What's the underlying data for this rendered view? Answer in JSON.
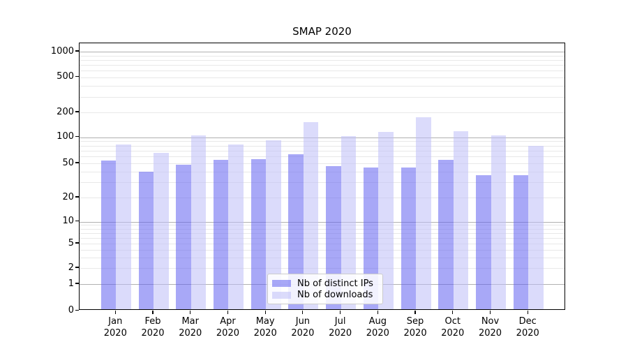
{
  "chart_data": {
    "type": "bar",
    "title": "SMAP 2020",
    "categories": [
      {
        "line1": "Jan",
        "line2": "2020"
      },
      {
        "line1": "Feb",
        "line2": "2020"
      },
      {
        "line1": "Mar",
        "line2": "2020"
      },
      {
        "line1": "Apr",
        "line2": "2020"
      },
      {
        "line1": "May",
        "line2": "2020"
      },
      {
        "line1": "Jun",
        "line2": "2020"
      },
      {
        "line1": "Jul",
        "line2": "2020"
      },
      {
        "line1": "Aug",
        "line2": "2020"
      },
      {
        "line1": "Sep",
        "line2": "2020"
      },
      {
        "line1": "Oct",
        "line2": "2020"
      },
      {
        "line1": "Nov",
        "line2": "2020"
      },
      {
        "line1": "Dec",
        "line2": "2020"
      }
    ],
    "series": [
      {
        "name": "Nb of distinct IPs",
        "color": "#aaaaf8",
        "fill_rgba": "rgba(97,97,240,0.55)",
        "values": [
          51,
          38,
          46,
          52,
          53,
          61,
          44,
          43,
          43,
          52,
          35,
          35
        ]
      },
      {
        "name": "Nb of downloads",
        "color": "#dbdbfa",
        "fill_rgba": "rgba(189,189,247,0.55)",
        "values": [
          79,
          63,
          101,
          79,
          88,
          144,
          98,
          111,
          165,
          113,
          100,
          76
        ]
      }
    ],
    "yscale": "symlog",
    "yticks": [
      {
        "label": "1000",
        "value": 1000
      },
      {
        "label": "500",
        "value": 500
      },
      {
        "label": "200",
        "value": 200
      },
      {
        "label": "100",
        "value": 100
      },
      {
        "label": "50",
        "value": 50
      },
      {
        "label": "20",
        "value": 20
      },
      {
        "label": "10",
        "value": 10
      },
      {
        "label": "5",
        "value": 5
      },
      {
        "label": "2",
        "value": 2
      },
      {
        "label": "1",
        "value": 1
      },
      {
        "label": "0",
        "value": 0
      }
    ],
    "xlabel": "",
    "ylabel": "",
    "grid": true,
    "legend_position": "lower center",
    "grid_major_color": "#b0b0b0",
    "grid_minor_color": "#e8e8e8"
  }
}
